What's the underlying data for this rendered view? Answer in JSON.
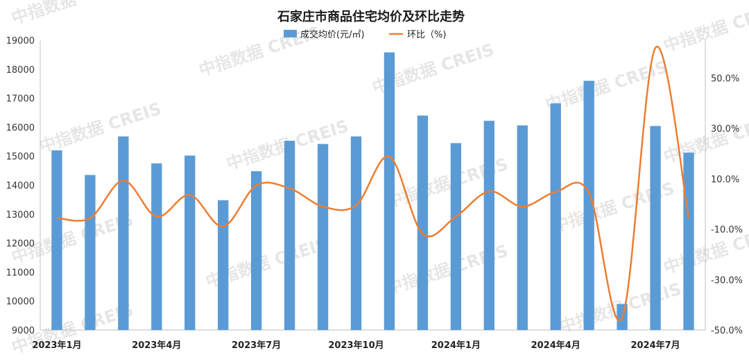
{
  "watermark": "中指数据 CREIS",
  "chart_data": {
    "type": "bar",
    "title": "石家庄市商品住宅均价及环比走势",
    "legend": {
      "placement": "top-center",
      "items": [
        {
          "label": "成交均价(元/㎡)",
          "color": "#5b9bd5",
          "kind": "bar"
        },
        {
          "label": "环比（%)",
          "color": "#ed7d31",
          "kind": "line"
        }
      ]
    },
    "categories": [
      "2023-01",
      "2023-02",
      "2023-03",
      "2023-04",
      "2023-05",
      "2023-06",
      "2023-07",
      "2023-08",
      "2023-09",
      "2023-10",
      "2023-11",
      "2023-12",
      "2024-01",
      "2024-02",
      "2024-03",
      "2024-04",
      "2024-05",
      "2024-06",
      "2024-07",
      "2024-08"
    ],
    "x_tick_labels": [
      {
        "index": 0,
        "label": "2023年1月"
      },
      {
        "index": 3,
        "label": "2023年4月"
      },
      {
        "index": 6,
        "label": "2023年7月"
      },
      {
        "index": 9,
        "label": "2023年10月"
      },
      {
        "index": 12,
        "label": "2024年1月"
      },
      {
        "index": 15,
        "label": "2024年4月"
      },
      {
        "index": 18,
        "label": "2024年7月"
      }
    ],
    "y_left": {
      "min": 9000,
      "max": 19000,
      "ticks": [
        "9000",
        "10000",
        "11000",
        "12000",
        "13000",
        "14000",
        "15000",
        "16000",
        "17000",
        "18000",
        "19000"
      ]
    },
    "y_right": {
      "min": -50,
      "max": 65,
      "ticks": [
        {
          "value": -50,
          "label": "-50.0%"
        },
        {
          "value": -30,
          "label": "-30.0%"
        },
        {
          "value": -10,
          "label": "-10.0%"
        },
        {
          "value": 10,
          "label": "10.0%"
        },
        {
          "value": 30,
          "label": "30.0%"
        },
        {
          "value": 50,
          "label": "50.0%"
        }
      ]
    },
    "grid": false,
    "series": [
      {
        "name": "成交均价(元/㎡)",
        "type": "bar",
        "axis": "left",
        "color": "#5b9bd5",
        "values": [
          15200,
          14350,
          15680,
          14750,
          15020,
          13480,
          14480,
          15530,
          15420,
          15680,
          18580,
          16400,
          15450,
          16220,
          16060,
          16820,
          17600,
          9900,
          16040,
          15120
        ]
      },
      {
        "name": "环比（%)",
        "type": "line",
        "axis": "right",
        "color": "#ed7d31",
        "smooth": true,
        "values": [
          -5.5,
          -5.6,
          9.3,
          -5.0,
          3.6,
          -8.9,
          7.4,
          6.2,
          -1.0,
          -0.5,
          18.8,
          -11.8,
          -5.0,
          5.0,
          -1.0,
          4.8,
          4.5,
          -45.0,
          62.0,
          -5.5
        ]
      }
    ]
  }
}
